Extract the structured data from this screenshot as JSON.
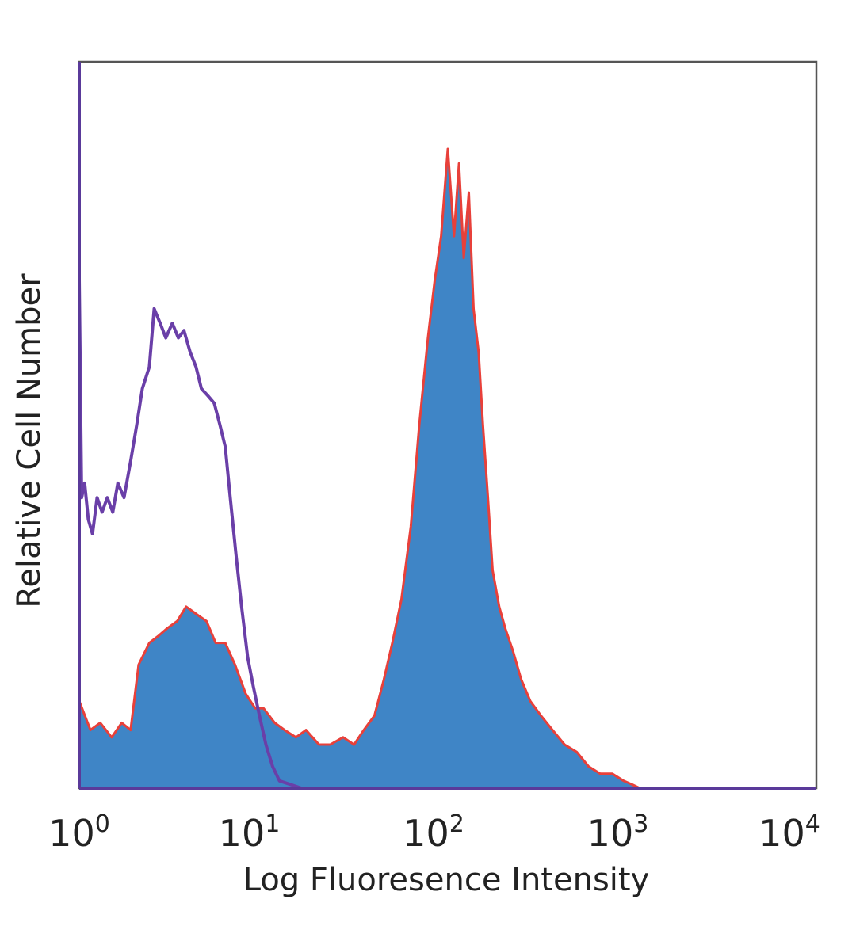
{
  "chart_data": {
    "type": "area",
    "title": "",
    "xlabel": "Log Fluoresence Intensity",
    "ylabel": "Relative Cell Number",
    "x_scale": "log",
    "xlim": [
      1,
      10000
    ],
    "ylim": [
      0,
      100
    ],
    "grid": false,
    "x_ticks": [
      {
        "base": "10",
        "exp": "0"
      },
      {
        "base": "10",
        "exp": "1"
      },
      {
        "base": "10",
        "exp": "2"
      },
      {
        "base": "10",
        "exp": "3"
      },
      {
        "base": "10",
        "exp": "4"
      }
    ],
    "series": [
      {
        "style": "filled",
        "fill_color": "#3f85c6",
        "edge_color": "#e8403a",
        "x": [
          1.0,
          1.15,
          1.3,
          1.5,
          1.7,
          1.9,
          2.1,
          2.4,
          2.7,
          3.0,
          3.4,
          3.8,
          4.3,
          4.9,
          5.5,
          6.2,
          7.0,
          8.0,
          9.0,
          10.0,
          11.5,
          13,
          15,
          17,
          20,
          23,
          27,
          31,
          35,
          40,
          45,
          50,
          56,
          63,
          70,
          78,
          85,
          92,
          100,
          108,
          115,
          122,
          130,
          138,
          147,
          155,
          165,
          175,
          190,
          205,
          225,
          250,
          280,
          320,
          370,
          430,
          500,
          580,
          670,
          780,
          900,
          1000,
          1100,
          1200,
          1500,
          2000,
          5000,
          10000
        ],
        "y": [
          12,
          8,
          9,
          7,
          9,
          8,
          17,
          20,
          21,
          22,
          23,
          25,
          24,
          23,
          20,
          20,
          17,
          13,
          11,
          11,
          9,
          8,
          7,
          8,
          6,
          6,
          7,
          6,
          8,
          10,
          15,
          20,
          26,
          36,
          50,
          62,
          70,
          76,
          88,
          76,
          86,
          73,
          82,
          66,
          60,
          50,
          40,
          30,
          25,
          22,
          19,
          15,
          12,
          10,
          8,
          6,
          5,
          3,
          2,
          2,
          1,
          0.5,
          0,
          0,
          0,
          0,
          0,
          0
        ]
      },
      {
        "style": "outline",
        "line_color": "#6a3fa8",
        "x": [
          1.0,
          1.03,
          1.07,
          1.12,
          1.18,
          1.25,
          1.33,
          1.42,
          1.52,
          1.62,
          1.75,
          1.9,
          2.05,
          2.2,
          2.4,
          2.55,
          2.75,
          2.95,
          3.2,
          3.45,
          3.7,
          4.0,
          4.3,
          4.6,
          5.0,
          5.4,
          5.8,
          6.2,
          6.6,
          7.1,
          7.6,
          8.2,
          8.8,
          9.5,
          10.3,
          11.2,
          12.2,
          14,
          16,
          20,
          30,
          100,
          1000,
          10000
        ],
        "y": [
          70,
          40,
          42,
          37,
          35,
          40,
          38,
          40,
          38,
          42,
          40,
          45,
          50,
          55,
          58,
          66,
          64,
          62,
          64,
          62,
          63,
          60,
          58,
          55,
          54,
          53,
          50,
          47,
          40,
          32,
          25,
          18,
          14,
          10,
          6,
          3,
          1,
          0.5,
          0,
          0,
          0,
          0,
          0,
          0
        ]
      }
    ]
  }
}
